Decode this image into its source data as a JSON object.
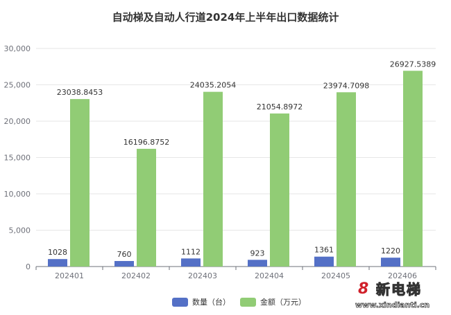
{
  "chart_data": {
    "type": "bar",
    "title": "自动梯及自动人行道2024年上半年出口数据统计",
    "categories": [
      "202401",
      "202402",
      "202403",
      "202404",
      "202405",
      "202406"
    ],
    "series": [
      {
        "name": "数量（台）",
        "color": "#5470c6",
        "values": [
          1028,
          760,
          1112,
          923,
          1361,
          1220
        ],
        "labels": [
          "1028",
          "760",
          "1112",
          "923",
          "1361",
          "1220"
        ]
      },
      {
        "name": "金额（万元）",
        "color": "#91cc75",
        "values": [
          23038.8453,
          16196.8752,
          24035.2054,
          21054.8972,
          23974.7098,
          26927.5389
        ],
        "labels": [
          "23038.8453",
          "16196.8752",
          "24035.2054",
          "21054.8972",
          "23974.7098",
          "26927.5389"
        ]
      }
    ],
    "ylim": [
      0,
      30000
    ],
    "yticks": [
      "0",
      "5,000",
      "10,000",
      "15,000",
      "20,000",
      "25,000",
      "30,000"
    ],
    "grid": true,
    "legend": "bottom"
  },
  "watermark": {
    "logo": "8",
    "name": "新电梯",
    "url": "www.xindianti.cn"
  }
}
